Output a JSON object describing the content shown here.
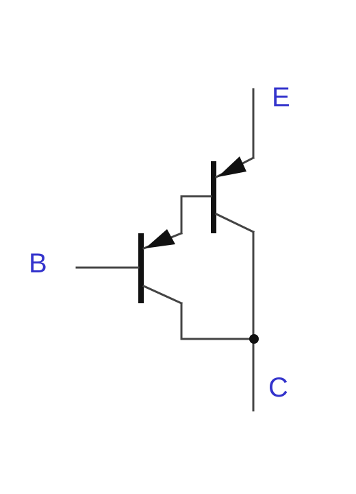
{
  "diagram": {
    "labels": {
      "emitter": "E",
      "base": "B",
      "collector": "C"
    },
    "colors": {
      "wire": "#444444",
      "symbol": "#111111",
      "label": "#3333cc",
      "background": "#ffffff"
    }
  }
}
